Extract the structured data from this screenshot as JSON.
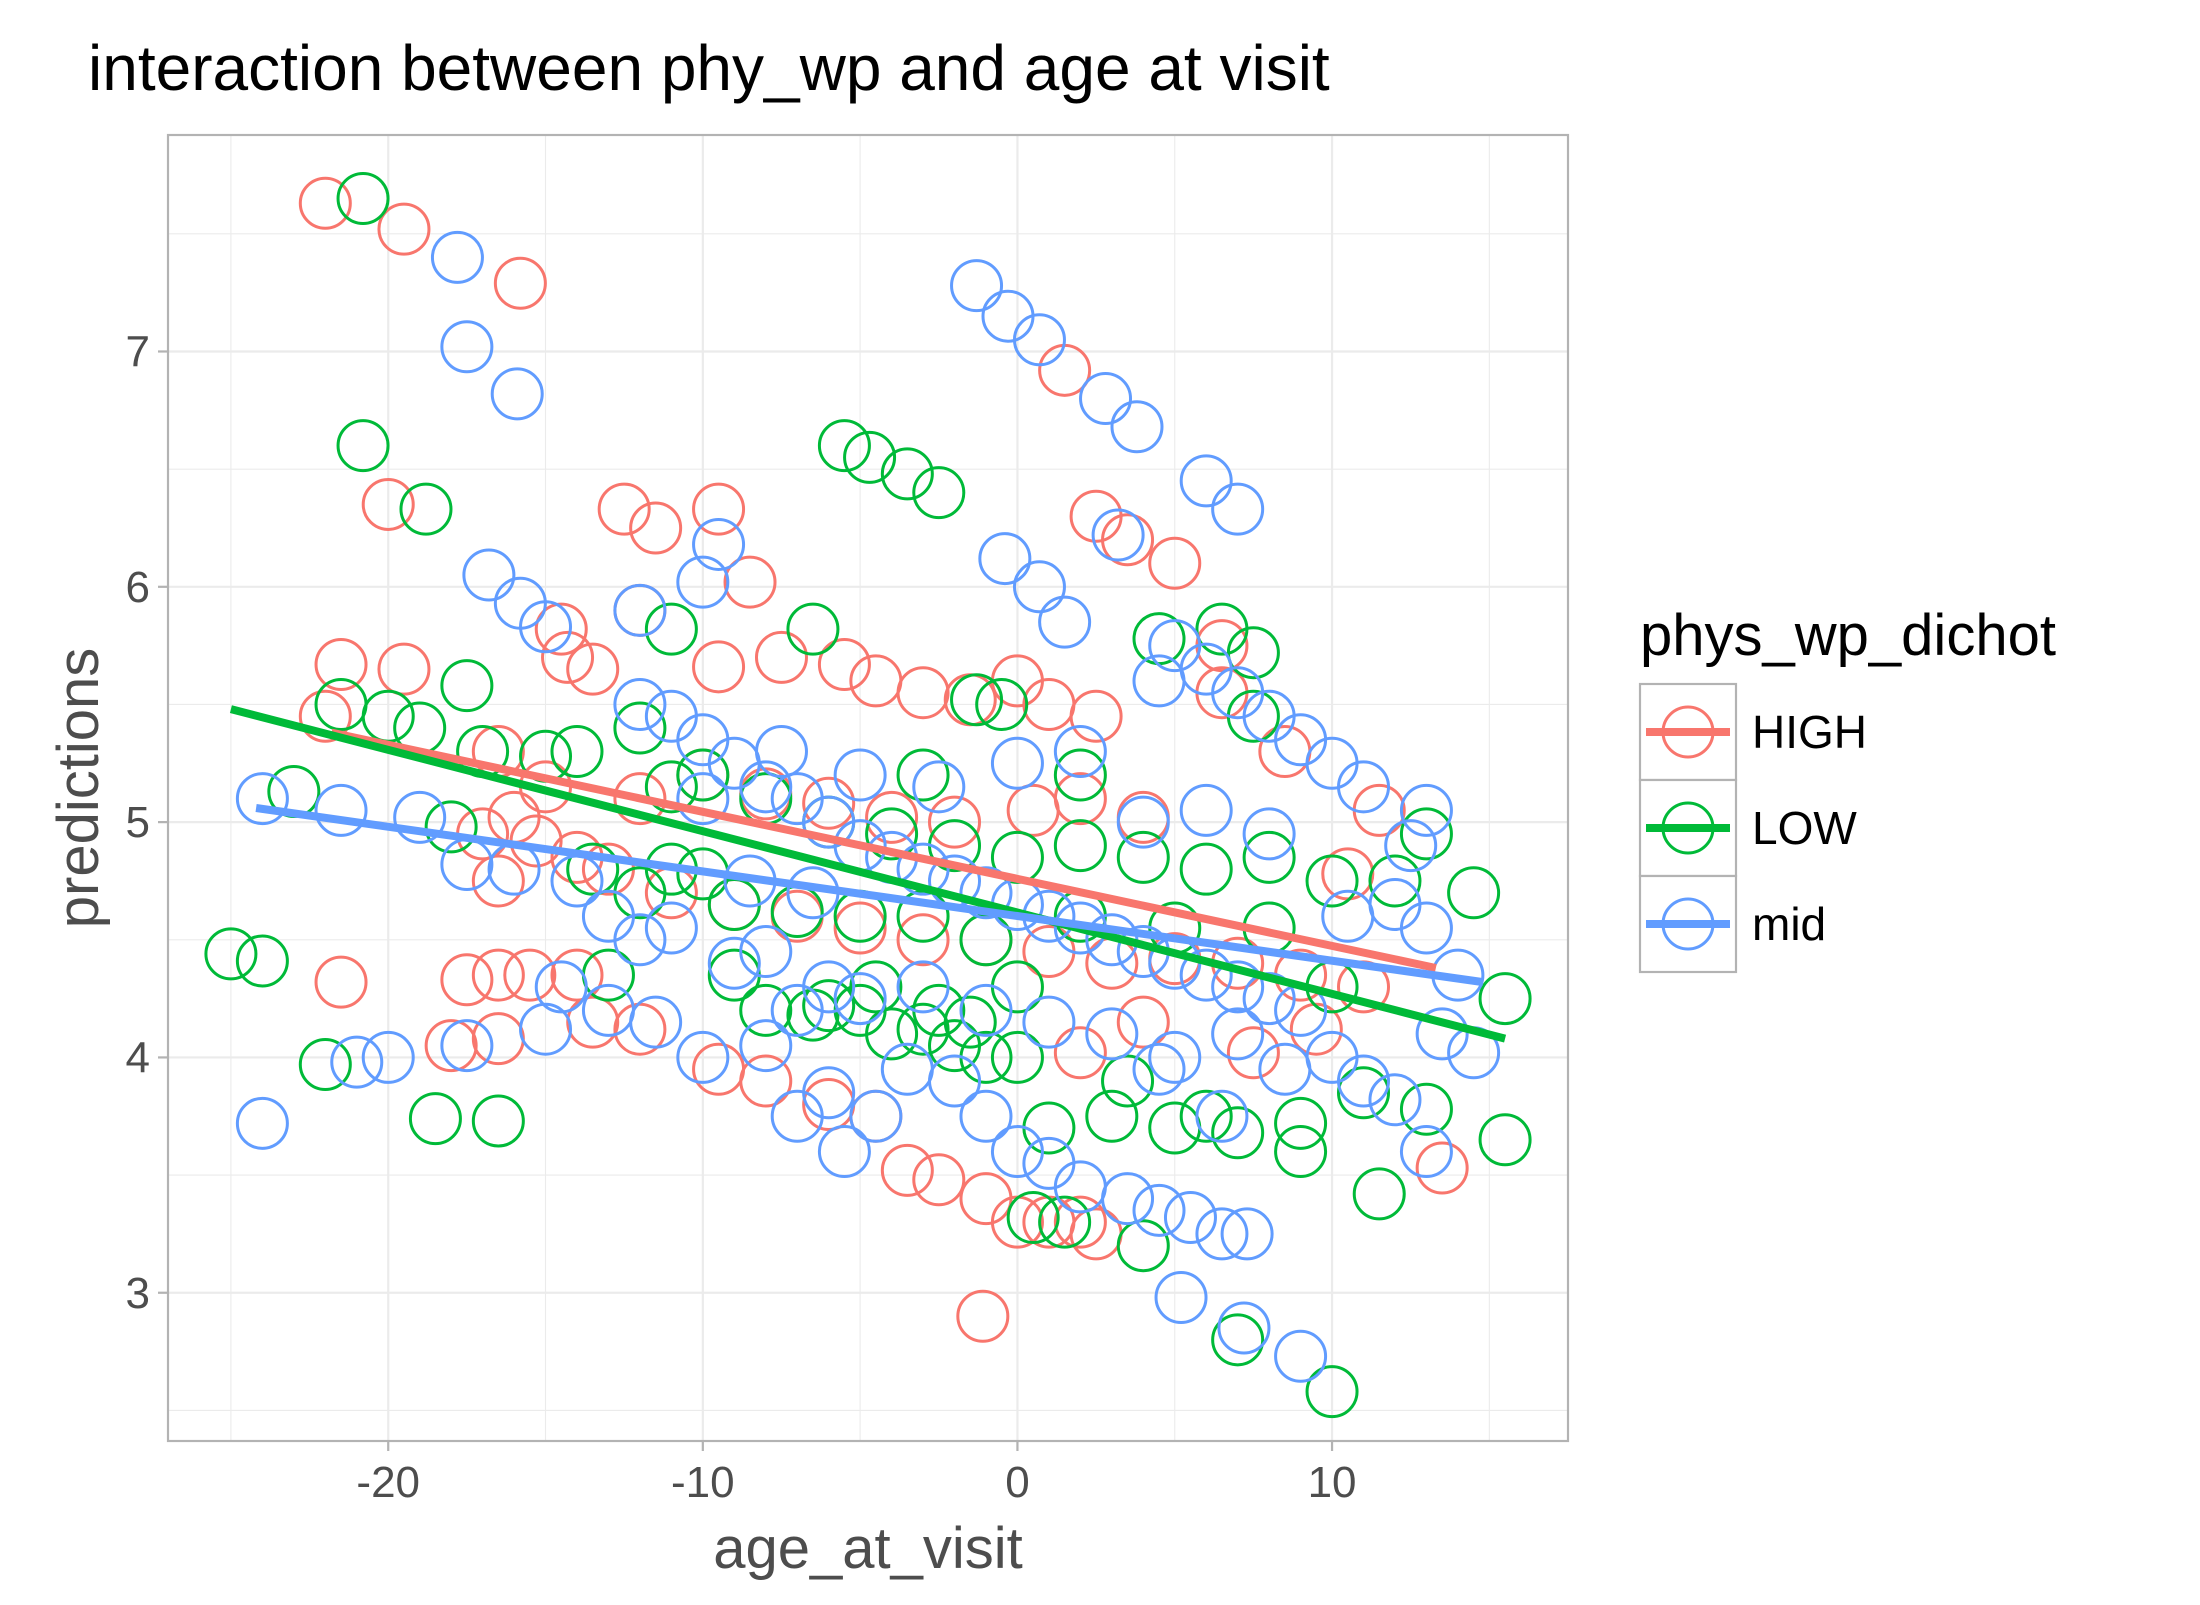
{
  "chart_data": {
    "type": "scatter",
    "title": "interaction between phy_wp and age at visit",
    "xlabel": "age_at_visit",
    "ylabel": "predictions",
    "xlim": [
      -27,
      17.5
    ],
    "ylim": [
      2.37,
      7.92
    ],
    "x_ticks": [
      -20,
      -10,
      0,
      10
    ],
    "x_tick_labels": [
      "-20",
      "-10",
      "0",
      "10"
    ],
    "y_ticks": [
      3,
      4,
      5,
      6,
      7
    ],
    "y_tick_labels": [
      "3",
      "4",
      "5",
      "6",
      "7"
    ],
    "grid": true,
    "legend_position": "right",
    "legend": {
      "title": "phys_wp_dichot",
      "items": [
        {
          "label": "HIGH",
          "color": "#F8766D"
        },
        {
          "label": "LOW",
          "color": "#00BA38"
        },
        {
          "label": "mid",
          "color": "#619CFF"
        }
      ]
    },
    "series": [
      {
        "name": "HIGH",
        "color": "#F8766D",
        "points": [
          [
            -22,
            7.63
          ],
          [
            -19.5,
            7.52
          ],
          [
            -15.8,
            7.29
          ],
          [
            -20,
            6.35
          ],
          [
            -12.5,
            6.33
          ],
          [
            -11.5,
            6.25
          ],
          [
            -9.5,
            6.33
          ],
          [
            -8.5,
            6.02
          ],
          [
            -12,
            5.9
          ],
          [
            -14.5,
            5.82
          ],
          [
            -14.3,
            5.7
          ],
          [
            -13.5,
            5.65
          ],
          [
            -21.5,
            5.67
          ],
          [
            -19.5,
            5.65
          ],
          [
            -22,
            5.45
          ],
          [
            -9.5,
            5.66
          ],
          [
            -7.5,
            5.7
          ],
          [
            -5.5,
            5.67
          ],
          [
            -4.5,
            5.6
          ],
          [
            -3,
            5.55
          ],
          [
            -1.5,
            5.52
          ],
          [
            0,
            5.6
          ],
          [
            1,
            5.5
          ],
          [
            2.5,
            5.45
          ],
          [
            -16.5,
            5.3
          ],
          [
            -15,
            5.15
          ],
          [
            -12,
            5.1
          ],
          [
            -10,
            5.2
          ],
          [
            -8,
            5.12
          ],
          [
            -6,
            5.08
          ],
          [
            -4,
            5.02
          ],
          [
            -2,
            5
          ],
          [
            0.5,
            5.05
          ],
          [
            2,
            5.1
          ],
          [
            4,
            5.02
          ],
          [
            -16,
            5.02
          ],
          [
            -17,
            4.95
          ],
          [
            -15.3,
            4.92
          ],
          [
            -14,
            4.85
          ],
          [
            -13,
            4.8
          ],
          [
            -16.5,
            4.75
          ],
          [
            -11,
            4.7
          ],
          [
            -9,
            4.65
          ],
          [
            -7,
            4.6
          ],
          [
            -5,
            4.55
          ],
          [
            -3,
            4.5
          ],
          [
            -1,
            4.5
          ],
          [
            1,
            4.45
          ],
          [
            3,
            4.4
          ],
          [
            5,
            4.42
          ],
          [
            7,
            4.4
          ],
          [
            9,
            4.35
          ],
          [
            11,
            4.3
          ],
          [
            10.5,
            4.78
          ],
          [
            11.5,
            5.05
          ],
          [
            8.5,
            5.3
          ],
          [
            6.5,
            5.55
          ],
          [
            6.5,
            5.75
          ],
          [
            5,
            6.1
          ],
          [
            3.5,
            6.2
          ],
          [
            2.5,
            6.3
          ],
          [
            1.5,
            6.92
          ],
          [
            -21.5,
            4.32
          ],
          [
            -17.5,
            4.33
          ],
          [
            -16.5,
            4.35
          ],
          [
            -15.5,
            4.35
          ],
          [
            -14,
            4.35
          ],
          [
            -18,
            4.05
          ],
          [
            -16.5,
            4.08
          ],
          [
            -13.5,
            4.15
          ],
          [
            -12,
            4.12
          ],
          [
            -9.5,
            3.95
          ],
          [
            -8,
            3.9
          ],
          [
            -6,
            3.8
          ],
          [
            -4.5,
            3.75
          ],
          [
            -3.5,
            3.52
          ],
          [
            -2.5,
            3.48
          ],
          [
            -1,
            3.4
          ],
          [
            0,
            3.3
          ],
          [
            1,
            3.3
          ],
          [
            2,
            3.3
          ],
          [
            2.5,
            3.25
          ],
          [
            -1.1,
            2.9
          ],
          [
            13.5,
            3.53
          ],
          [
            9.5,
            4.12
          ],
          [
            7.5,
            4.02
          ],
          [
            4,
            4.15
          ],
          [
            2,
            4.02
          ]
        ]
      },
      {
        "name": "LOW",
        "color": "#00BA38",
        "points": [
          [
            -20.8,
            7.65
          ],
          [
            -20.8,
            6.6
          ],
          [
            -18.8,
            6.33
          ],
          [
            -5.5,
            6.6
          ],
          [
            -4.7,
            6.55
          ],
          [
            -3.5,
            6.48
          ],
          [
            -2.5,
            6.4
          ],
          [
            -11,
            5.82
          ],
          [
            -6.5,
            5.82
          ],
          [
            -21.5,
            5.5
          ],
          [
            -20,
            5.45
          ],
          [
            -19,
            5.4
          ],
          [
            -17.5,
            5.58
          ],
          [
            -23,
            5.13
          ],
          [
            -25,
            4.44
          ],
          [
            -24,
            4.41
          ],
          [
            -18,
            4.98
          ],
          [
            -22,
            3.97
          ],
          [
            -18.5,
            3.74
          ],
          [
            -16.5,
            3.73
          ],
          [
            -13,
            4.35
          ],
          [
            -17,
            5.3
          ],
          [
            -15,
            5.28
          ],
          [
            -14,
            5.3
          ],
          [
            -12,
            5.4
          ],
          [
            -11,
            5.15
          ],
          [
            -10,
            5.2
          ],
          [
            -8,
            5.1
          ],
          [
            -6,
            5
          ],
          [
            -4,
            4.95
          ],
          [
            -2,
            4.9
          ],
          [
            0,
            4.85
          ],
          [
            2,
            4.9
          ],
          [
            4,
            4.85
          ],
          [
            6,
            4.8
          ],
          [
            8,
            4.85
          ],
          [
            10,
            4.75
          ],
          [
            12,
            4.75
          ],
          [
            13,
            4.95
          ],
          [
            14.5,
            4.7
          ],
          [
            15.5,
            4.25
          ],
          [
            15.5,
            3.65
          ],
          [
            13,
            3.78
          ],
          [
            11.5,
            3.42
          ],
          [
            10,
            2.58
          ],
          [
            7,
            2.8
          ],
          [
            4,
            3.2
          ],
          [
            1.5,
            3.3
          ],
          [
            0.5,
            3.32
          ],
          [
            -1,
            4.5
          ],
          [
            -3,
            4.6
          ],
          [
            -5,
            4.6
          ],
          [
            -7,
            4.62
          ],
          [
            -9,
            4.65
          ],
          [
            -12,
            4.7
          ],
          [
            -13.5,
            4.8
          ],
          [
            -8,
            4.2
          ],
          [
            -6.5,
            4.18
          ],
          [
            -5,
            4.2
          ],
          [
            -4,
            4.1
          ],
          [
            -3,
            4.12
          ],
          [
            -2,
            4.05
          ],
          [
            -1,
            4.0
          ],
          [
            1,
            3.7
          ],
          [
            3,
            3.75
          ],
          [
            5,
            3.7
          ],
          [
            7,
            3.68
          ],
          [
            9,
            3.6
          ],
          [
            4.5,
            5.78
          ],
          [
            6.5,
            5.82
          ],
          [
            7.5,
            5.72
          ],
          [
            7.5,
            5.45
          ],
          [
            -1.3,
            5.52
          ],
          [
            -0.5,
            5.5
          ],
          [
            2,
            5.2
          ],
          [
            -3,
            5.2
          ],
          [
            0,
            4.3
          ],
          [
            2,
            4.6
          ],
          [
            5,
            4.55
          ],
          [
            8,
            4.55
          ],
          [
            10,
            4.3
          ],
          [
            11,
            3.85
          ],
          [
            9,
            3.72
          ],
          [
            6,
            3.75
          ],
          [
            3.5,
            3.9
          ],
          [
            0,
            4.0
          ],
          [
            -1.5,
            4.15
          ],
          [
            -2.5,
            4.2
          ],
          [
            -4.5,
            4.3
          ],
          [
            -6,
            4.22
          ],
          [
            -9,
            4.35
          ],
          [
            -11,
            4.8
          ],
          [
            -10,
            4.78
          ]
        ]
      },
      {
        "name": "mid",
        "color": "#619CFF",
        "points": [
          [
            -17.8,
            7.4
          ],
          [
            -17.5,
            7.02
          ],
          [
            -15.9,
            6.82
          ],
          [
            -1.3,
            7.28
          ],
          [
            -0.3,
            7.15
          ],
          [
            0.7,
            7.05
          ],
          [
            2.8,
            6.8
          ],
          [
            3.8,
            6.68
          ],
          [
            6,
            6.45
          ],
          [
            7,
            6.33
          ],
          [
            3.2,
            6.22
          ],
          [
            -0.4,
            6.12
          ],
          [
            0.7,
            6.0
          ],
          [
            1.5,
            5.85
          ],
          [
            -16.8,
            6.05
          ],
          [
            -15.8,
            5.93
          ],
          [
            -15,
            5.83
          ],
          [
            -9.5,
            6.18
          ],
          [
            -12,
            5.9
          ],
          [
            -10,
            6.02
          ],
          [
            -24,
            5.1
          ],
          [
            -21.5,
            5.05
          ],
          [
            -19,
            5.02
          ],
          [
            -17.5,
            4.82
          ],
          [
            -16,
            4.8
          ],
          [
            -24,
            3.72
          ],
          [
            -21,
            3.98
          ],
          [
            -20,
            4.0
          ],
          [
            -17.5,
            4.05
          ],
          [
            -15,
            4.12
          ],
          [
            -13,
            4.2
          ],
          [
            -11.5,
            4.15
          ],
          [
            -10,
            4.0
          ],
          [
            -8,
            4.05
          ],
          [
            -7,
            4.2
          ],
          [
            -6,
            3.85
          ],
          [
            -4.5,
            3.75
          ],
          [
            -3.5,
            3.95
          ],
          [
            -2,
            3.9
          ],
          [
            -1,
            3.75
          ],
          [
            0,
            3.6
          ],
          [
            1,
            3.55
          ],
          [
            2,
            3.45
          ],
          [
            3.5,
            3.4
          ],
          [
            4.5,
            3.35
          ],
          [
            5.5,
            3.32
          ],
          [
            6.5,
            3.25
          ],
          [
            7.3,
            3.25
          ],
          [
            5.2,
            2.98
          ],
          [
            7.2,
            2.85
          ],
          [
            9,
            2.73
          ],
          [
            10,
            4.0
          ],
          [
            11,
            3.9
          ],
          [
            12,
            3.82
          ],
          [
            13,
            3.6
          ],
          [
            13.5,
            4.1
          ],
          [
            14.5,
            4.02
          ],
          [
            14,
            4.35
          ],
          [
            13,
            4.55
          ],
          [
            12,
            4.65
          ],
          [
            12.5,
            4.9
          ],
          [
            13,
            5.05
          ],
          [
            11,
            5.15
          ],
          [
            10,
            5.25
          ],
          [
            9,
            5.35
          ],
          [
            8,
            5.45
          ],
          [
            7,
            5.55
          ],
          [
            6,
            5.65
          ],
          [
            5,
            5.75
          ],
          [
            4.5,
            5.6
          ],
          [
            -12,
            5.5
          ],
          [
            -11,
            5.45
          ],
          [
            -10,
            5.35
          ],
          [
            -9,
            5.25
          ],
          [
            -8,
            5.15
          ],
          [
            -7,
            5.1
          ],
          [
            -6,
            5.0
          ],
          [
            -5,
            4.9
          ],
          [
            -4,
            4.85
          ],
          [
            -3,
            4.8
          ],
          [
            -2,
            4.75
          ],
          [
            -1,
            4.7
          ],
          [
            0,
            4.65
          ],
          [
            1,
            4.6
          ],
          [
            2,
            4.55
          ],
          [
            3,
            4.5
          ],
          [
            4,
            4.45
          ],
          [
            5,
            4.4
          ],
          [
            6,
            4.35
          ],
          [
            7,
            4.3
          ],
          [
            8,
            4.25
          ],
          [
            9,
            4.2
          ],
          [
            -14,
            4.75
          ],
          [
            -13,
            4.6
          ],
          [
            -12,
            4.5
          ],
          [
            -11,
            4.55
          ],
          [
            -9,
            4.4
          ],
          [
            -8,
            4.45
          ],
          [
            -6,
            4.3
          ],
          [
            -5,
            4.25
          ],
          [
            -3,
            4.3
          ],
          [
            -1,
            4.2
          ],
          [
            1,
            4.15
          ],
          [
            3,
            4.1
          ],
          [
            5,
            4.0
          ],
          [
            7,
            4.1
          ],
          [
            8.5,
            3.95
          ],
          [
            -10,
            5.1
          ],
          [
            -7.5,
            5.3
          ],
          [
            -5,
            5.2
          ],
          [
            -2.5,
            5.15
          ],
          [
            0,
            5.25
          ],
          [
            2,
            5.3
          ],
          [
            4,
            5.0
          ],
          [
            6,
            5.05
          ],
          [
            8,
            4.95
          ],
          [
            10.5,
            4.6
          ],
          [
            -14.5,
            4.3
          ],
          [
            -7,
            3.75
          ],
          [
            -5.5,
            3.6
          ],
          [
            4.5,
            3.95
          ],
          [
            6.5,
            3.75
          ],
          [
            -8.5,
            4.75
          ],
          [
            -6.5,
            4.7
          ]
        ]
      }
    ],
    "trend_lines": [
      {
        "name": "HIGH",
        "color": "#F8766D",
        "x": [
          -21.8,
          13.3
        ],
        "y": [
          5.38,
          4.38
        ]
      },
      {
        "name": "LOW",
        "color": "#00BA38",
        "x": [
          -25,
          15.5
        ],
        "y": [
          5.48,
          4.08
        ]
      },
      {
        "name": "mid",
        "color": "#619CFF",
        "x": [
          -24.2,
          14.8
        ],
        "y": [
          5.06,
          4.32
        ]
      }
    ]
  }
}
